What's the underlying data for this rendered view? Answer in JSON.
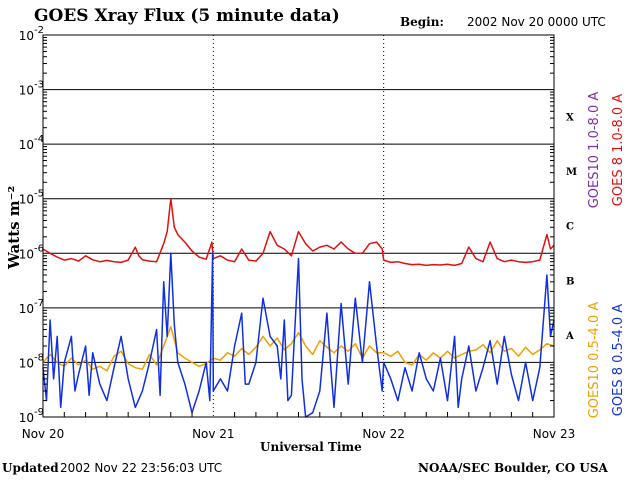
{
  "header": {
    "title": "GOES Xray Flux (5 minute data)",
    "begin_label": "Begin:",
    "begin_value": "2002 Nov 20 0000 UTC"
  },
  "footer": {
    "updated_label": "Updated",
    "updated_value": "2002 Nov 22 23:56:03 UTC",
    "credit": "NOAA/SEC Boulder, CO USA"
  },
  "chart_data": {
    "type": "line",
    "title": "GOES Xray Flux (5 minute data)",
    "xlabel": "Universal Time",
    "ylabel": "Watts m⁻²",
    "yscale": "log",
    "ylim": [
      1e-09,
      0.01
    ],
    "xlim": [
      0,
      72
    ],
    "x_unit": "hours since 2002 Nov 20 0000 UTC",
    "y_ticks": [
      {
        "base": "10",
        "exp": "-2",
        "value": 0.01
      },
      {
        "base": "10",
        "exp": "-3",
        "value": 0.001
      },
      {
        "base": "10",
        "exp": "-4",
        "value": 0.0001
      },
      {
        "base": "10",
        "exp": "-5",
        "value": 1e-05
      },
      {
        "base": "10",
        "exp": "-6",
        "value": 1e-06
      },
      {
        "base": "10",
        "exp": "-7",
        "value": 1e-07
      },
      {
        "base": "10",
        "exp": "-8",
        "value": 1e-08
      },
      {
        "base": "10",
        "exp": "-9",
        "value": 1e-09
      }
    ],
    "x_ticks": [
      {
        "label": "Nov 20",
        "x": 0
      },
      {
        "label": "Nov 21",
        "x": 24
      },
      {
        "label": "Nov 22",
        "x": 48
      },
      {
        "label": "Nov 23",
        "x": 72
      }
    ],
    "flare_classes": [
      {
        "label": "X",
        "value": 0.00032
      },
      {
        "label": "M",
        "value": 3.2e-05
      },
      {
        "label": "C",
        "value": 3.2e-06
      },
      {
        "label": "B",
        "value": 3.2e-07
      },
      {
        "label": "A",
        "value": 3.2e-08
      }
    ],
    "legend": [
      {
        "text": "GOES10 1.0-8.0 A",
        "color": "#7b2fa8"
      },
      {
        "text": "GOES 8 1.0-8.0 A",
        "color": "#e01010"
      },
      {
        "text": "GOES10 0.5-4.0 A",
        "color": "#f0a000"
      },
      {
        "text": "GOES 8 0.5-4.0 A",
        "color": "#1030e0"
      }
    ],
    "grid": true,
    "series": [
      {
        "name": "GOES 8 1.0-8.0 A",
        "color": "#e01010",
        "points": [
          [
            0,
            1.2e-06
          ],
          [
            1,
            1e-06
          ],
          [
            2,
            8.5e-07
          ],
          [
            3,
            7.5e-07
          ],
          [
            4,
            8e-07
          ],
          [
            5,
            7.2e-07
          ],
          [
            6,
            9e-07
          ],
          [
            7,
            7.6e-07
          ],
          [
            8,
            7e-07
          ],
          [
            9,
            7.4e-07
          ],
          [
            10,
            7e-07
          ],
          [
            11,
            6.8e-07
          ],
          [
            12,
            7.5e-07
          ],
          [
            13,
            1.3e-06
          ],
          [
            13.5,
            9e-07
          ],
          [
            14,
            7.6e-07
          ],
          [
            15,
            7.2e-07
          ],
          [
            16,
            7e-07
          ],
          [
            17,
            1.5e-06
          ],
          [
            17.5,
            2.5e-06
          ],
          [
            18,
            1e-05
          ],
          [
            18.5,
            3e-06
          ],
          [
            19,
            2.2e-06
          ],
          [
            20,
            1.6e-06
          ],
          [
            21,
            1.1e-06
          ],
          [
            22,
            8.5e-07
          ],
          [
            23,
            7.8e-07
          ],
          [
            23.8,
            1.6e-06
          ],
          [
            24,
            8e-07
          ],
          [
            25,
            9e-07
          ],
          [
            26,
            7.5e-07
          ],
          [
            27,
            7e-07
          ],
          [
            28,
            1.2e-06
          ],
          [
            29,
            7.5e-07
          ],
          [
            30,
            7.2e-07
          ],
          [
            31,
            1e-06
          ],
          [
            32,
            2.5e-06
          ],
          [
            33,
            1.4e-06
          ],
          [
            34,
            1.2e-06
          ],
          [
            35,
            9e-07
          ],
          [
            36,
            2.5e-06
          ],
          [
            37,
            1.5e-06
          ],
          [
            38,
            1.1e-06
          ],
          [
            39,
            1.3e-06
          ],
          [
            40,
            1.4e-06
          ],
          [
            41,
            1.2e-06
          ],
          [
            42,
            1.6e-06
          ],
          [
            43,
            1.2e-06
          ],
          [
            44,
            1e-06
          ],
          [
            45,
            1e-06
          ],
          [
            46,
            1.5e-06
          ],
          [
            47,
            1.6e-06
          ],
          [
            47.8,
            1.2e-06
          ],
          [
            48,
            7.5e-07
          ],
          [
            49,
            6.8e-07
          ],
          [
            50,
            7e-07
          ],
          [
            51,
            6.5e-07
          ],
          [
            52,
            6.2e-07
          ],
          [
            53,
            6.3e-07
          ],
          [
            54,
            6e-07
          ],
          [
            55,
            6.2e-07
          ],
          [
            56,
            6.1e-07
          ],
          [
            57,
            6.3e-07
          ],
          [
            58,
            6e-07
          ],
          [
            59,
            6.5e-07
          ],
          [
            60,
            1.3e-06
          ],
          [
            61,
            8e-07
          ],
          [
            62,
            7e-07
          ],
          [
            63,
            1.6e-06
          ],
          [
            64,
            8e-07
          ],
          [
            65,
            7e-07
          ],
          [
            66,
            7.5e-07
          ],
          [
            67,
            7e-07
          ],
          [
            68,
            6.8e-07
          ],
          [
            69,
            7e-07
          ],
          [
            70,
            7.5e-07
          ],
          [
            71,
            2.2e-06
          ],
          [
            71.5,
            1.2e-06
          ],
          [
            72,
            1.4e-06
          ]
        ]
      },
      {
        "name": "GOES10 0.5-4.0 A",
        "color": "#f0a000",
        "points": [
          [
            0,
            1e-08
          ],
          [
            1,
            1.4e-08
          ],
          [
            2,
            1e-08
          ],
          [
            3,
            8.5e-09
          ],
          [
            4,
            1.2e-08
          ],
          [
            5,
            9e-09
          ],
          [
            6,
            1.1e-08
          ],
          [
            7,
            7.5e-09
          ],
          [
            8,
            8.5e-09
          ],
          [
            9,
            7e-09
          ],
          [
            10,
            1.3e-08
          ],
          [
            11,
            1.6e-08
          ],
          [
            12,
            9.5e-09
          ],
          [
            13,
            8e-09
          ],
          [
            14,
            7.5e-09
          ],
          [
            15,
            1.4e-08
          ],
          [
            16,
            9e-09
          ],
          [
            17,
            2e-08
          ],
          [
            18,
            4.5e-08
          ],
          [
            19,
            1.5e-08
          ],
          [
            20,
            1.2e-08
          ],
          [
            21,
            1e-08
          ],
          [
            22,
            8.5e-09
          ],
          [
            23,
            9.5e-09
          ],
          [
            24,
            1.2e-08
          ],
          [
            25,
            1.1e-08
          ],
          [
            26,
            1.5e-08
          ],
          [
            27,
            1.3e-08
          ],
          [
            28,
            1.8e-08
          ],
          [
            29,
            1.4e-08
          ],
          [
            30,
            1.9e-08
          ],
          [
            31,
            3e-08
          ],
          [
            32,
            2e-08
          ],
          [
            33,
            2.8e-08
          ],
          [
            34,
            1.7e-08
          ],
          [
            35,
            2.2e-08
          ],
          [
            36,
            3.5e-08
          ],
          [
            37,
            2e-08
          ],
          [
            38,
            1.4e-08
          ],
          [
            39,
            2.5e-08
          ],
          [
            40,
            1.9e-08
          ],
          [
            41,
            1.5e-08
          ],
          [
            42,
            2e-08
          ],
          [
            43,
            1.6e-08
          ],
          [
            44,
            2.2e-08
          ],
          [
            45,
            1.2e-08
          ],
          [
            46,
            2e-08
          ],
          [
            47,
            1.5e-08
          ],
          [
            48,
            1.5e-08
          ],
          [
            49,
            1.3e-08
          ],
          [
            50,
            1.6e-08
          ],
          [
            51,
            1e-08
          ],
          [
            52,
            9e-09
          ],
          [
            53,
            1.4e-08
          ],
          [
            54,
            1.1e-08
          ],
          [
            55,
            1.5e-08
          ],
          [
            56,
            1.2e-08
          ],
          [
            57,
            1.6e-08
          ],
          [
            58,
            1.2e-08
          ],
          [
            59,
            1.4e-08
          ],
          [
            60,
            1.6e-08
          ],
          [
            61,
            1.7e-08
          ],
          [
            62,
            2.1e-08
          ],
          [
            63,
            1.5e-08
          ],
          [
            64,
            2.5e-08
          ],
          [
            65,
            1.6e-08
          ],
          [
            66,
            1.8e-08
          ],
          [
            67,
            1.3e-08
          ],
          [
            68,
            1.9e-08
          ],
          [
            69,
            1.4e-08
          ],
          [
            70,
            1.7e-08
          ],
          [
            71,
            2.2e-08
          ],
          [
            72,
            2e-08
          ]
        ]
      },
      {
        "name": "GOES 8 0.5-4.0 A",
        "color": "#1030e0",
        "points": [
          [
            0,
            8e-09
          ],
          [
            0.5,
            2e-09
          ],
          [
            1,
            6e-08
          ],
          [
            1.5,
            5e-09
          ],
          [
            2,
            3e-08
          ],
          [
            2.5,
            1.5e-09
          ],
          [
            3,
            1e-08
          ],
          [
            4,
            3e-08
          ],
          [
            4.5,
            3e-09
          ],
          [
            5,
            6e-09
          ],
          [
            6,
            2e-08
          ],
          [
            6.5,
            2.5e-09
          ],
          [
            7,
            1.5e-08
          ],
          [
            8,
            4e-09
          ],
          [
            9,
            2e-09
          ],
          [
            10,
            8e-09
          ],
          [
            11,
            3e-08
          ],
          [
            12,
            5e-09
          ],
          [
            13,
            1.5e-09
          ],
          [
            14,
            3e-09
          ],
          [
            15,
            1e-08
          ],
          [
            16,
            4e-08
          ],
          [
            16.5,
            2.5e-09
          ],
          [
            17,
            3e-07
          ],
          [
            17.5,
            3e-08
          ],
          [
            18,
            1e-06
          ],
          [
            18.5,
            5e-08
          ],
          [
            19,
            1e-08
          ],
          [
            20,
            4e-09
          ],
          [
            21,
            1.2e-09
          ],
          [
            22,
            3e-09
          ],
          [
            23,
            1e-08
          ],
          [
            23.5,
            2e-09
          ],
          [
            23.9,
            1e-06
          ],
          [
            24,
            3e-09
          ],
          [
            25,
            5e-09
          ],
          [
            26,
            3e-09
          ],
          [
            27,
            2e-08
          ],
          [
            28,
            8e-08
          ],
          [
            28.5,
            4e-09
          ],
          [
            29,
            4e-09
          ],
          [
            30,
            1e-08
          ],
          [
            31,
            1.5e-07
          ],
          [
            32,
            3e-08
          ],
          [
            33,
            2e-08
          ],
          [
            33.5,
            5e-09
          ],
          [
            34,
            6e-08
          ],
          [
            34.5,
            2e-09
          ],
          [
            35,
            2.5e-09
          ],
          [
            36,
            8e-07
          ],
          [
            36.5,
            5e-09
          ],
          [
            37,
            1e-09
          ],
          [
            38,
            1.2e-09
          ],
          [
            39,
            3e-09
          ],
          [
            40,
            8e-08
          ],
          [
            40.5,
            1e-08
          ],
          [
            41,
            1.5e-09
          ],
          [
            42,
            1.2e-07
          ],
          [
            43,
            4e-09
          ],
          [
            44,
            1.5e-07
          ],
          [
            45,
            1e-08
          ],
          [
            46,
            3e-07
          ],
          [
            47,
            2e-08
          ],
          [
            47.8,
            3e-09
          ],
          [
            48,
            1e-08
          ],
          [
            49,
            5e-09
          ],
          [
            50,
            2e-09
          ],
          [
            51,
            8e-09
          ],
          [
            52,
            3e-09
          ],
          [
            53,
            1.5e-08
          ],
          [
            54,
            5e-09
          ],
          [
            55,
            3e-09
          ],
          [
            56,
            1.2e-08
          ],
          [
            57,
            2e-09
          ],
          [
            58,
            3e-08
          ],
          [
            58.5,
            1.5e-09
          ],
          [
            59,
            5e-09
          ],
          [
            60,
            2e-08
          ],
          [
            61,
            3e-09
          ],
          [
            62,
            8e-09
          ],
          [
            63,
            2.5e-08
          ],
          [
            64,
            4e-09
          ],
          [
            65,
            3e-08
          ],
          [
            66,
            6e-09
          ],
          [
            67,
            2e-09
          ],
          [
            68,
            1e-08
          ],
          [
            69,
            2e-09
          ],
          [
            70,
            8e-09
          ],
          [
            71,
            4e-07
          ],
          [
            71.5,
            3e-08
          ],
          [
            72,
            6e-08
          ]
        ]
      }
    ]
  }
}
